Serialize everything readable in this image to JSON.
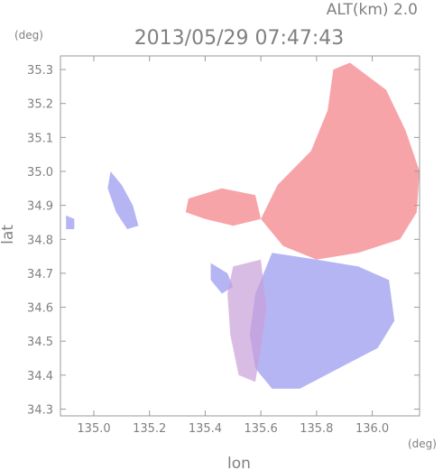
{
  "header": {
    "altitude_label": "ALT(km) 2.0",
    "timestamp": "2013/05/29 07:47:43"
  },
  "chart_data": {
    "type": "heatmap",
    "title": "2013/05/29 07:47:43",
    "subtitle": "ALT(km) 2.0",
    "xlabel": "lon",
    "ylabel": "lat",
    "x_unit": "(deg)",
    "y_unit": "(deg)",
    "xlim": [
      134.88,
      136.17
    ],
    "ylim": [
      34.28,
      35.34
    ],
    "x_ticks": [
      135.0,
      135.2,
      135.4,
      135.6,
      135.8,
      136.0
    ],
    "x_tick_labels": [
      "135.0",
      "135.2",
      "135.4",
      "135.6",
      "135.8",
      "136.0"
    ],
    "y_ticks": [
      34.3,
      34.4,
      34.5,
      34.6,
      34.7,
      34.8,
      34.9,
      35.0,
      35.1,
      35.2,
      35.3
    ],
    "y_tick_labels": [
      "34.3",
      "34.4",
      "34.5",
      "34.6",
      "34.7",
      "34.8",
      "34.9",
      "35.0",
      "35.1",
      "35.2",
      "35.3"
    ],
    "colormap": {
      "positive": "#f4868c",
      "neutral": "#ffffff",
      "negative": "#9c9cf0"
    },
    "grid": false,
    "regions": [
      {
        "sign": "positive",
        "polygon": [
          [
            135.92,
            35.32
          ],
          [
            136.05,
            35.24
          ],
          [
            136.12,
            35.12
          ],
          [
            136.17,
            35.0
          ],
          [
            136.16,
            34.88
          ],
          [
            136.1,
            34.8
          ],
          [
            135.95,
            34.76
          ],
          [
            135.8,
            34.74
          ],
          [
            135.68,
            34.78
          ],
          [
            135.6,
            34.86
          ],
          [
            135.66,
            34.96
          ],
          [
            135.78,
            35.06
          ],
          [
            135.84,
            35.18
          ],
          [
            135.86,
            35.3
          ]
        ]
      },
      {
        "sign": "negative",
        "polygon": [
          [
            135.64,
            34.76
          ],
          [
            135.8,
            34.74
          ],
          [
            135.95,
            34.72
          ],
          [
            136.06,
            34.68
          ],
          [
            136.08,
            34.56
          ],
          [
            136.02,
            34.48
          ],
          [
            135.88,
            34.42
          ],
          [
            135.74,
            34.36
          ],
          [
            135.64,
            34.36
          ],
          [
            135.58,
            34.42
          ],
          [
            135.56,
            34.52
          ],
          [
            135.58,
            34.64
          ]
        ]
      },
      {
        "sign": "negative",
        "polygon": [
          [
            135.06,
            35.0
          ],
          [
            135.1,
            34.96
          ],
          [
            135.14,
            34.9
          ],
          [
            135.16,
            34.84
          ],
          [
            135.12,
            34.83
          ],
          [
            135.08,
            34.88
          ],
          [
            135.05,
            34.95
          ]
        ]
      },
      {
        "sign": "negative",
        "polygon": [
          [
            135.42,
            34.73
          ],
          [
            135.48,
            34.7
          ],
          [
            135.5,
            34.66
          ],
          [
            135.46,
            34.64
          ],
          [
            135.42,
            34.68
          ]
        ]
      },
      {
        "sign": "positive",
        "polygon": [
          [
            135.34,
            34.92
          ],
          [
            135.46,
            34.95
          ],
          [
            135.58,
            34.93
          ],
          [
            135.6,
            34.86
          ],
          [
            135.5,
            34.84
          ],
          [
            135.4,
            34.86
          ],
          [
            135.33,
            34.88
          ]
        ]
      },
      {
        "sign": "mixed",
        "polygon": [
          [
            135.5,
            34.72
          ],
          [
            135.6,
            34.74
          ],
          [
            135.62,
            34.6
          ],
          [
            135.6,
            34.48
          ],
          [
            135.58,
            34.38
          ],
          [
            135.52,
            34.4
          ],
          [
            135.49,
            34.52
          ],
          [
            135.48,
            34.64
          ]
        ]
      },
      {
        "sign": "negative",
        "polygon": [
          [
            134.9,
            34.87
          ],
          [
            134.93,
            34.86
          ],
          [
            134.93,
            34.83
          ],
          [
            134.9,
            34.83
          ]
        ]
      }
    ]
  }
}
